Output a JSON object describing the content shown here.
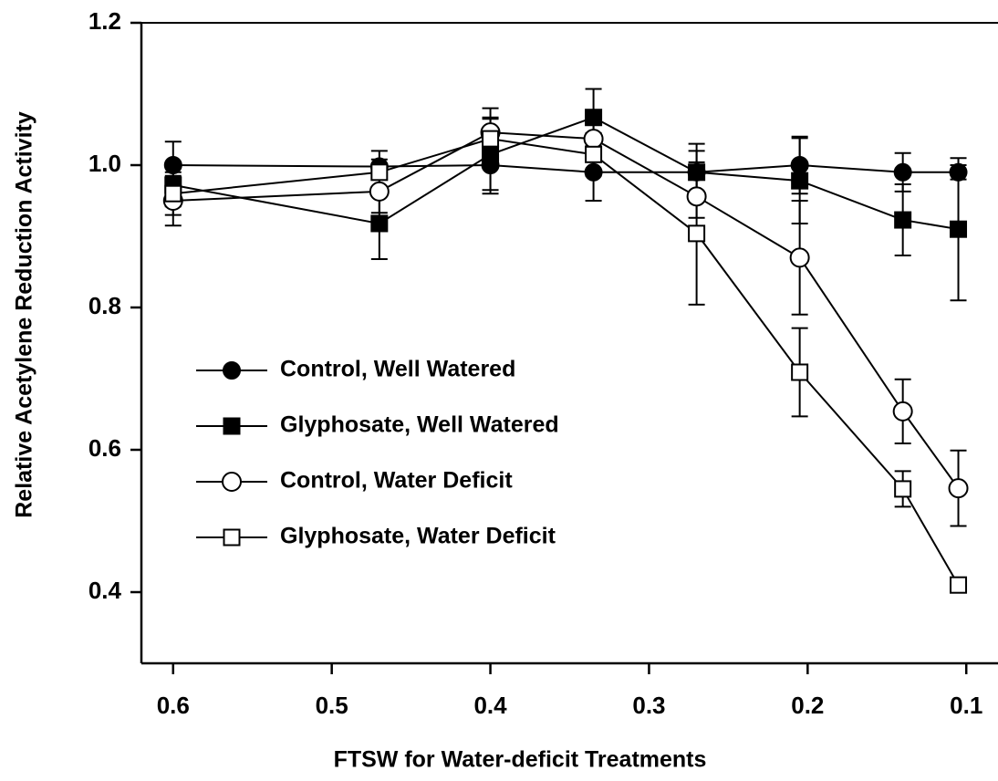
{
  "chart_data": {
    "type": "line",
    "xlabel": "FTSW for Water-deficit Treatments",
    "ylabel": "Relative Acetylene Reduction Activity",
    "x": [
      0.6,
      0.47,
      0.4,
      0.335,
      0.27,
      0.205,
      0.14,
      0.105
    ],
    "xlim": [
      0.62,
      0.08
    ],
    "ylim": [
      0.3,
      1.2
    ],
    "xticks": [
      0.6,
      0.5,
      0.4,
      0.3,
      0.2,
      0.1
    ],
    "yticks": [
      0.4,
      0.6,
      0.8,
      {
        "value": 1,
        "label": "1.0"
      },
      1.2
    ],
    "legend": "center left",
    "series": [
      {
        "name": "Control, Well Watered",
        "color": "#000000",
        "marker": "filled-circle",
        "values": [
          1.0,
          0.998,
          1.0,
          0.99,
          0.99,
          1.0,
          0.99,
          0.99
        ],
        "errors": [
          0.033,
          0.01,
          0.04,
          0.04,
          0.04,
          0.04,
          0.027,
          0.01
        ]
      },
      {
        "name": "Glyphosate, Well Watered",
        "color": "#000000",
        "marker": "filled-square",
        "values": [
          0.972,
          0.918,
          1.015,
          1.067,
          0.99,
          0.978,
          0.923,
          0.91
        ],
        "errors": [
          0.03,
          0.05,
          0.05,
          0.04,
          0.03,
          0.06,
          0.05,
          0.1
        ]
      },
      {
        "name": "Control, Water Deficit",
        "color": "#000000",
        "marker": "open-circle",
        "values": [
          0.95,
          0.963,
          1.046,
          1.037,
          0.956,
          0.87,
          0.654,
          0.546
        ],
        "errors": [
          0.035,
          0.03,
          0.034,
          0.03,
          0.03,
          0.08,
          0.045,
          0.053
        ]
      },
      {
        "name": "Glyphosate, Water Deficit",
        "color": "#000000",
        "marker": "open-square",
        "values": [
          0.96,
          0.99,
          1.037,
          1.015,
          0.904,
          0.709,
          0.545,
          0.41
        ],
        "errors": [
          0.03,
          0.03,
          0.03,
          0.03,
          0.1,
          0.062,
          0.025,
          0.01
        ]
      }
    ]
  }
}
